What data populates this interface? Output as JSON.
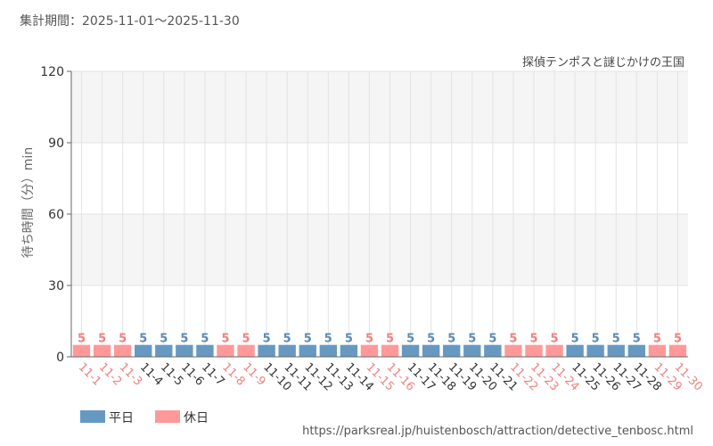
{
  "period_label": "集計期間：2025-11-01～2025-11-30",
  "source_title": "探偵テンポスと謎じかけの王国",
  "url": "https://parksreal.jp/huistenbosch/attraction/detective_tenbosc.html",
  "colors": {
    "weekday": "#6699c2",
    "holiday": "#ff9999",
    "weekday_text": "#5a8ab5",
    "holiday_text": "#f08080"
  },
  "chart_data": {
    "type": "bar",
    "ylabel": "待ち時間（分）min",
    "ylim": [
      0,
      120
    ],
    "yticks": [
      0,
      30,
      60,
      90,
      120
    ],
    "grid": true,
    "legend": [
      {
        "name": "平日",
        "key": "weekday"
      },
      {
        "name": "休日",
        "key": "holiday"
      }
    ],
    "legend_position": "bottom-left",
    "categories": [
      "11-1",
      "11-2",
      "11-3",
      "11-4",
      "11-5",
      "11-6",
      "11-7",
      "11-8",
      "11-9",
      "11-10",
      "11-11",
      "11-12",
      "11-13",
      "11-14",
      "11-15",
      "11-16",
      "11-17",
      "11-18",
      "11-19",
      "11-20",
      "11-21",
      "11-22",
      "11-23",
      "11-24",
      "11-25",
      "11-26",
      "11-27",
      "11-28",
      "11-29",
      "11-30"
    ],
    "values": [
      5,
      5,
      5,
      5,
      5,
      5,
      5,
      5,
      5,
      5,
      5,
      5,
      5,
      5,
      5,
      5,
      5,
      5,
      5,
      5,
      5,
      5,
      5,
      5,
      5,
      5,
      5,
      5,
      5,
      5
    ],
    "day_type": [
      "holiday",
      "holiday",
      "holiday",
      "weekday",
      "weekday",
      "weekday",
      "weekday",
      "holiday",
      "holiday",
      "weekday",
      "weekday",
      "weekday",
      "weekday",
      "weekday",
      "holiday",
      "holiday",
      "weekday",
      "weekday",
      "weekday",
      "weekday",
      "weekday",
      "holiday",
      "holiday",
      "holiday",
      "weekday",
      "weekday",
      "weekday",
      "weekday",
      "holiday",
      "holiday"
    ]
  }
}
